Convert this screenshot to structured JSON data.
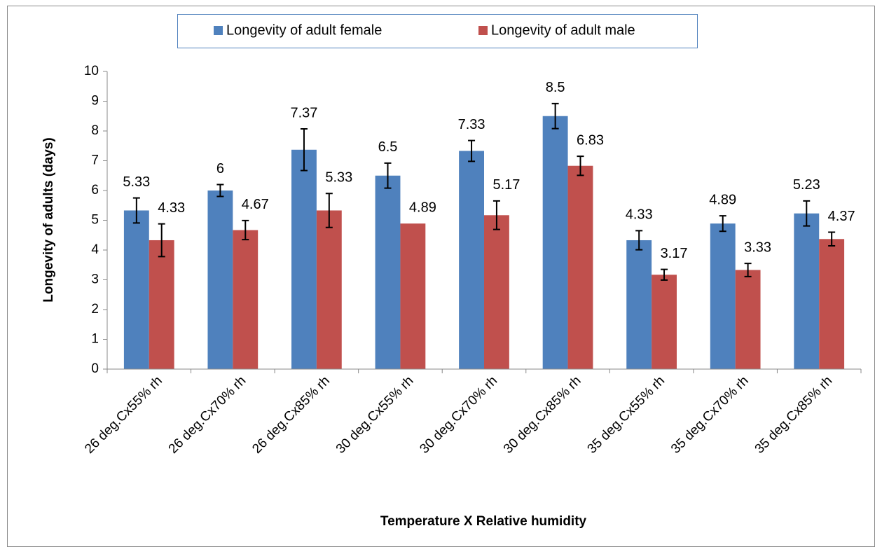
{
  "chart_data": {
    "type": "bar",
    "x_label": "Temperature X Relative humidity",
    "y_label": "Longevity of adults (days)",
    "categories": [
      "26 deg.Cx55% rh",
      "26 deg.Cx70% rh",
      "26 deg.Cx85% rh",
      "30 deg.Cx55% rh",
      "30 deg.Cx70% rh",
      "30 deg.Cx85% rh",
      "35 deg.Cx55% rh",
      "35 deg.Cx70% rh",
      "35 deg.Cx85% rh"
    ],
    "series": [
      {
        "name": "Longevity of adult female",
        "color": "#4f81bd",
        "values": [
          5.33,
          6,
          7.37,
          6.5,
          7.33,
          8.5,
          4.33,
          4.89,
          5.23
        ],
        "errors": [
          0.42,
          0.2,
          0.7,
          0.42,
          0.35,
          0.42,
          0.32,
          0.26,
          0.42
        ]
      },
      {
        "name": "Longevity of adult male",
        "color": "#c0504d",
        "values": [
          4.33,
          4.67,
          5.33,
          4.89,
          5.17,
          6.83,
          3.17,
          3.33,
          4.37
        ],
        "errors": [
          0.55,
          0.32,
          0.57,
          null,
          0.48,
          0.32,
          0.18,
          0.22,
          0.23
        ]
      }
    ],
    "ylim": [
      0,
      10
    ],
    "yticks": [
      0,
      1,
      2,
      3,
      4,
      5,
      6,
      7,
      8,
      9,
      10
    ],
    "legend": "top"
  }
}
